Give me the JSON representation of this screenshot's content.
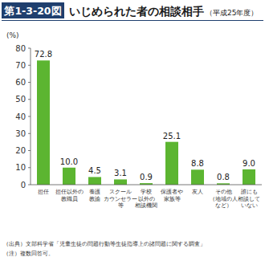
{
  "chart_data": {
    "type": "bar",
    "figure_label": "第1-3-20図",
    "title": "いじめられた者の相談相手",
    "subtitle": "（平成25年度）",
    "y_label": "(%)",
    "categories": [
      "担任",
      "担任以外の\n教職員",
      "養護\n教諭",
      "スクール\nカウンセラー\n等",
      "学校\n以外の\n相談機関",
      "保護者や\n家族等",
      "友人",
      "その他\n（地域の人\nなど）",
      "誰にも\n相談して\nいない"
    ],
    "values": [
      72.8,
      10.0,
      4.5,
      3.1,
      0.9,
      25.1,
      8.8,
      0.8,
      9.0
    ],
    "value_labels": [
      "72.8",
      "10.0",
      "4.5",
      "3.1",
      "0.9",
      "25.1",
      "8.8",
      "0.8",
      "9.0"
    ],
    "color": "#5cb531",
    "ylim": [
      0,
      80
    ],
    "yticks": [
      0,
      10,
      20,
      30,
      40,
      50,
      60,
      70,
      80
    ],
    "grid": false,
    "data_labels": true,
    "notes": [
      "（出典）文部科学省「児童生徒の問題行動等生徒指導上の諸問題に関する調査」",
      "（注）複数回答可。"
    ]
  }
}
